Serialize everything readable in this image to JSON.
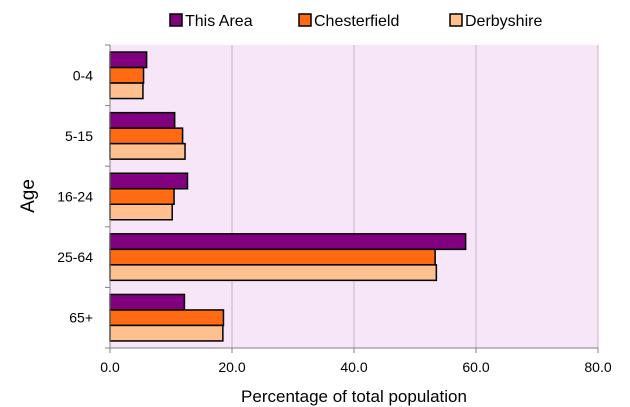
{
  "chart_data": {
    "type": "bar",
    "orientation": "horizontal",
    "categories": [
      "0-4",
      "5-15",
      "16-24",
      "25-64",
      "65+"
    ],
    "series": [
      {
        "name": "This Area",
        "color": "#800080",
        "values": [
          6.0,
          10.6,
          12.7,
          58.3,
          12.2
        ]
      },
      {
        "name": "Chesterfield",
        "color": "#FF6A13",
        "values": [
          5.5,
          11.9,
          10.5,
          53.3,
          18.6
        ]
      },
      {
        "name": "Derbyshire",
        "color": "#FFC08F",
        "values": [
          5.4,
          12.3,
          10.2,
          53.5,
          18.5
        ]
      }
    ],
    "xlabel": "Percentage of total population",
    "ylabel": "Age",
    "xlim": [
      0,
      80
    ],
    "xticks": [
      "0.0",
      "20.0",
      "40.0",
      "60.0",
      "80.0"
    ],
    "legend_position": "top",
    "plot_background": "#F7E6F7",
    "gridlines": "vertical"
  }
}
